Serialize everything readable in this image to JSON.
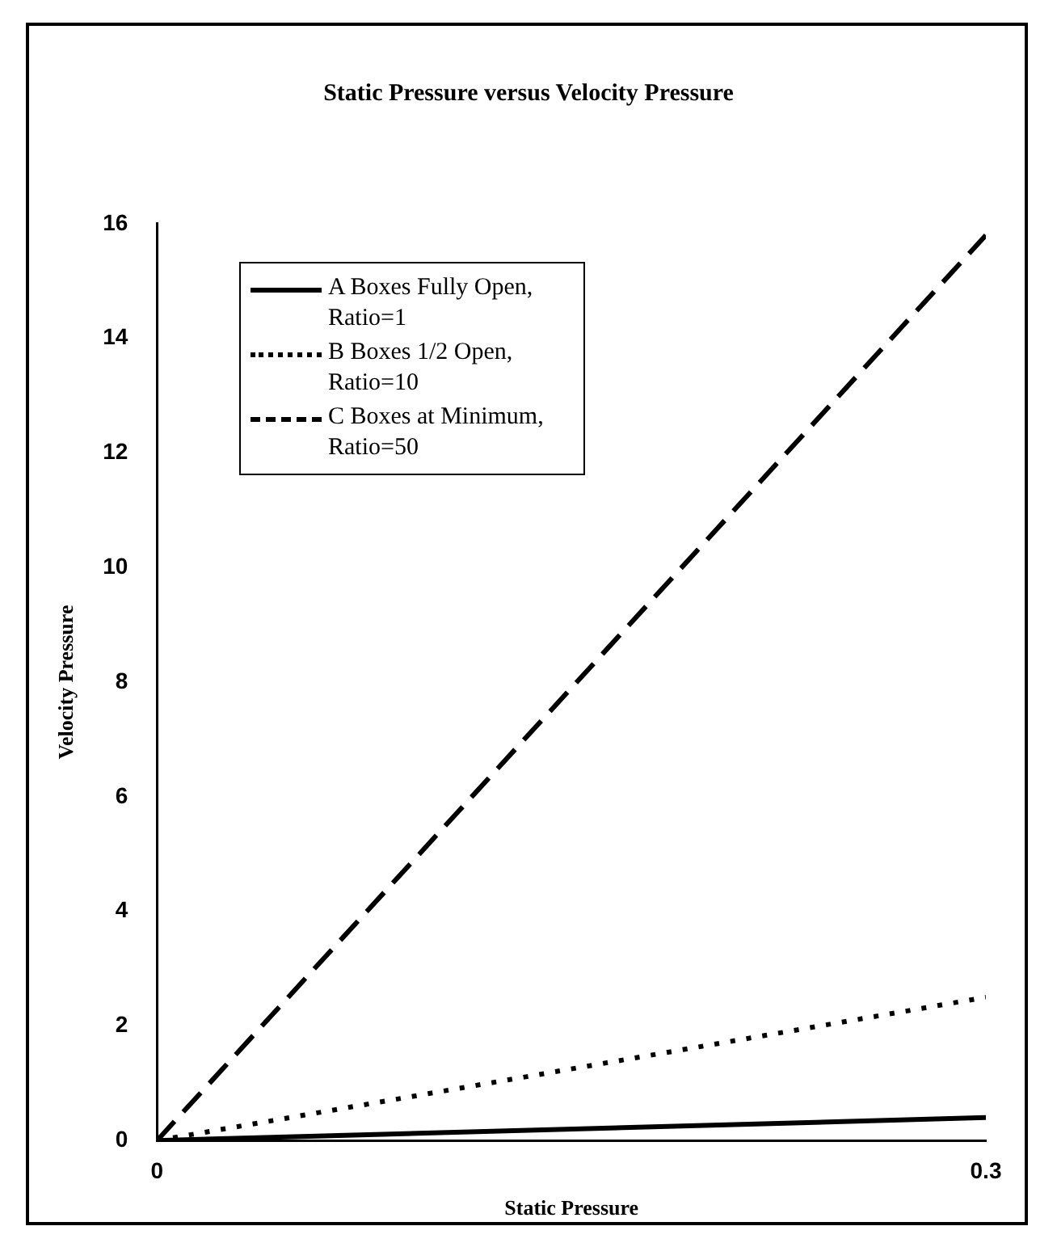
{
  "chart_data": {
    "type": "line",
    "title": "Static Pressure versus Velocity Pressure",
    "xlabel": "Static Pressure",
    "ylabel": "Velocity Pressure",
    "x": [
      0,
      0.3
    ],
    "series": [
      {
        "name": "A Boxes Fully Open, Ratio=1",
        "color": "#000000",
        "values": [
          0,
          0.4
        ],
        "line_style": "solid"
      },
      {
        "name": "B Boxes 1/2 Open, Ratio=10",
        "color": "#000000",
        "values": [
          0,
          2.5
        ],
        "line_style": "dotted"
      },
      {
        "name": "C Boxes at Minimum, Ratio=50",
        "color": "#000000",
        "values": [
          0,
          15.8
        ],
        "line_style": "dashed"
      }
    ],
    "xlim": [
      0,
      0.3
    ],
    "xticks": [
      0,
      0.3
    ],
    "ylim": [
      0,
      16
    ],
    "yticks": [
      0,
      2,
      4,
      6,
      8,
      10,
      12,
      14,
      16
    ],
    "grid": false,
    "legend": "top left",
    "marker": "none"
  }
}
